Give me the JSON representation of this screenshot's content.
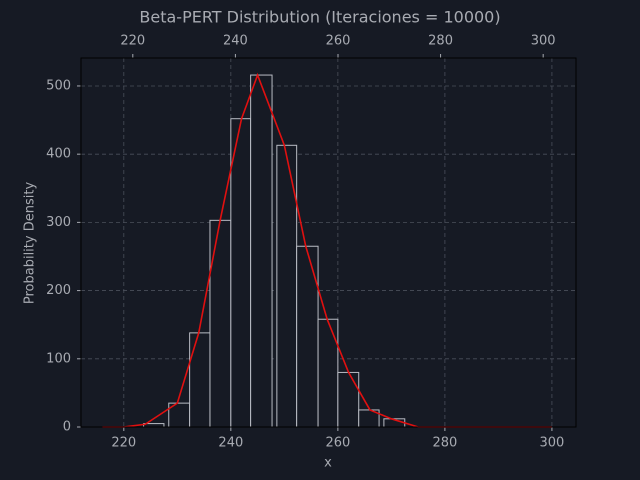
{
  "chart_data": {
    "type": "histogram",
    "title": "Beta-PERT Distribution (Iteraciones = 10000)",
    "xlabel": "x",
    "ylabel": "Probability Density",
    "bins": [
      223.7,
      227.5,
      228.4,
      232.3,
      236.1,
      240.0,
      243.7,
      247.7,
      248.6,
      252.3,
      256.3,
      260.0,
      263.9,
      267.7,
      268.6,
      272.5
    ],
    "counts": [
      5,
      0,
      35,
      138,
      303,
      452,
      516,
      0,
      413,
      265,
      158,
      80,
      25,
      0,
      12
    ],
    "bar_color": "#b9bcc4",
    "line": {
      "x": [
        216,
        220,
        224,
        230,
        234,
        238,
        242,
        245,
        250,
        254,
        258,
        262,
        266,
        270,
        275,
        300
      ],
      "values": [
        0,
        0,
        4,
        35,
        138,
        303,
        452,
        516,
        413,
        265,
        158,
        80,
        25,
        12,
        0,
        0
      ],
      "color": "#e01010"
    },
    "xlim": [
      212,
      304.5
    ],
    "xticks": [
      220,
      240,
      260,
      280,
      300
    ],
    "x2lim": [
      209.9,
      306.4
    ],
    "x2ticks": [
      220,
      240,
      260,
      280,
      300
    ],
    "ylim": [
      0,
      541
    ],
    "yticks": [
      0,
      100,
      200,
      300,
      400,
      500
    ],
    "grid": true
  }
}
